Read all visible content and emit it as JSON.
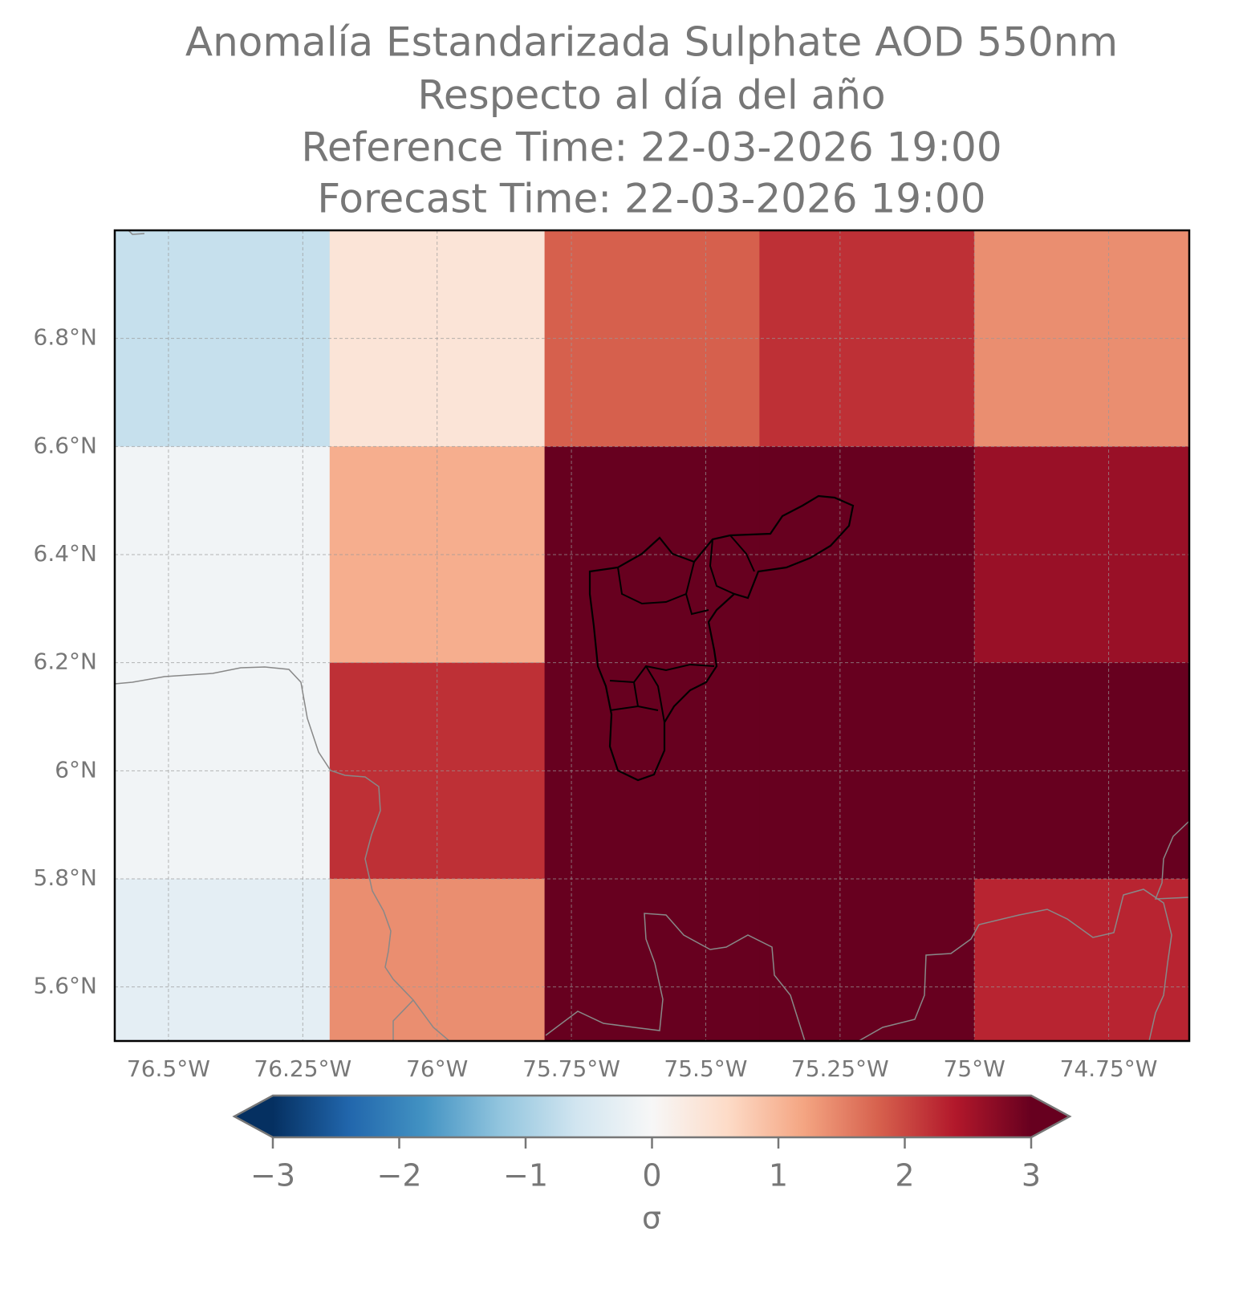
{
  "chart_data": {
    "type": "heatmap",
    "title": [
      "Anomalía Estandarizada Sulphate AOD 550nm",
      "Respecto al día del año",
      "Reference Time: 22-03-2026 19:00",
      "Forecast Time: 22-03-2026 19:00"
    ],
    "xlim": [
      -76.6,
      -74.6
    ],
    "ylim": [
      5.5,
      7.0
    ],
    "x_edges": [
      -76.6,
      -76.2,
      -75.8,
      -75.4,
      -75.0,
      -74.6
    ],
    "y_edges": [
      7.0,
      6.6,
      6.2,
      5.8,
      5.5
    ],
    "values": [
      [
        -0.7,
        0.4,
        1.8,
        2.2,
        1.4
      ],
      [
        -0.1,
        1.1,
        3.1,
        3.1,
        2.6
      ],
      [
        -0.1,
        2.2,
        3.2,
        3.2,
        3.0
      ],
      [
        -0.3,
        1.4,
        3.1,
        3.1,
        2.3
      ]
    ],
    "xticks": [
      {
        "value": -76.5,
        "label": "76.5°W"
      },
      {
        "value": -76.25,
        "label": "76.25°W"
      },
      {
        "value": -76.0,
        "label": "76°W"
      },
      {
        "value": -75.75,
        "label": "75.75°W"
      },
      {
        "value": -75.5,
        "label": "75.5°W"
      },
      {
        "value": -75.25,
        "label": "75.25°W"
      },
      {
        "value": -75.0,
        "label": "75°W"
      },
      {
        "value": -74.75,
        "label": "74.75°W"
      }
    ],
    "yticks": [
      {
        "value": 5.6,
        "label": "5.6°N"
      },
      {
        "value": 5.8,
        "label": "5.8°N"
      },
      {
        "value": 6.0,
        "label": "6°N"
      },
      {
        "value": 6.2,
        "label": "6.2°N"
      },
      {
        "value": 6.4,
        "label": "6.4°N"
      },
      {
        "value": 6.6,
        "label": "6.6°N"
      },
      {
        "value": 6.8,
        "label": "6.8°N"
      }
    ],
    "grid": true,
    "colormap": [
      "#053061",
      "#2166ac",
      "#4393c3",
      "#92c5de",
      "#d1e5f0",
      "#f7f7f7",
      "#fddbc7",
      "#f4a582",
      "#d6604d",
      "#b2182b",
      "#67001f"
    ],
    "clim": [
      -3,
      3
    ],
    "cbar_ticks": [
      {
        "value": -3,
        "label": "−3"
      },
      {
        "value": -2,
        "label": "−2"
      },
      {
        "value": -1,
        "label": "−1"
      },
      0,
      1,
      2,
      3
    ],
    "cbar_label": "σ"
  }
}
